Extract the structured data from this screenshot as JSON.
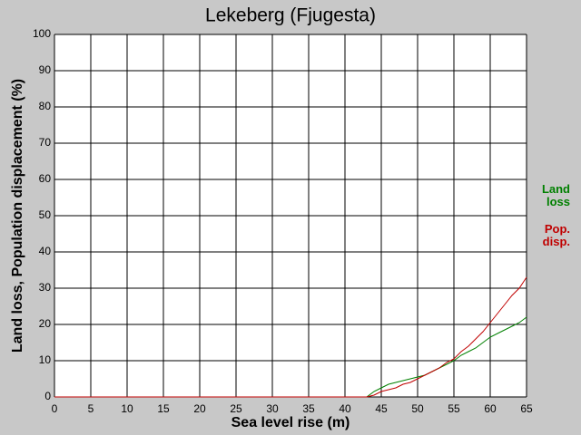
{
  "chart_data": {
    "type": "line",
    "title": "Lekeberg (Fjugesta)",
    "x_label": "Sea level rise (m)",
    "y_label": "Land loss, Population displacement (%)",
    "x": [
      0,
      1,
      2,
      3,
      4,
      5,
      6,
      7,
      8,
      9,
      10,
      11,
      12,
      13,
      14,
      15,
      16,
      17,
      18,
      19,
      20,
      21,
      22,
      23,
      24,
      25,
      26,
      27,
      28,
      29,
      30,
      31,
      32,
      33,
      34,
      35,
      36,
      37,
      38,
      39,
      40,
      41,
      42,
      43,
      44,
      45,
      46,
      47,
      48,
      49,
      50,
      51,
      52,
      53,
      54,
      55,
      56,
      57,
      58,
      59,
      60,
      61,
      62,
      63,
      64,
      65
    ],
    "series": [
      {
        "name": "Land loss",
        "color": "#008000",
        "values": [
          0,
          0,
          0,
          0,
          0,
          0,
          0,
          0,
          0,
          0,
          0,
          0,
          0,
          0,
          0,
          0,
          0,
          0,
          0,
          0,
          0,
          0,
          0,
          0,
          0,
          0,
          0,
          0,
          0,
          0,
          0,
          0,
          0,
          0,
          0,
          0,
          0,
          0,
          0,
          0,
          0,
          0,
          0,
          0,
          1.5,
          2.5,
          3.5,
          4,
          4.5,
          5,
          5.5,
          6,
          7,
          8,
          9,
          10,
          11.5,
          12.5,
          13.5,
          15,
          16.5,
          17.5,
          18.5,
          19.5,
          20.5,
          22
        ]
      },
      {
        "name": "Pop. disp.",
        "color": "#c00000",
        "values": [
          0,
          0,
          0,
          0,
          0,
          0,
          0,
          0,
          0,
          0,
          0,
          0,
          0,
          0,
          0,
          0,
          0,
          0,
          0,
          0,
          0,
          0,
          0,
          0,
          0,
          0,
          0,
          0,
          0,
          0,
          0,
          0,
          0,
          0,
          0,
          0,
          0,
          0,
          0,
          0,
          0,
          0,
          0,
          0,
          0.5,
          1.5,
          2,
          2.5,
          3.5,
          4,
          5,
          6,
          7,
          8,
          9.5,
          10.5,
          12.5,
          14,
          16,
          18,
          20.5,
          23,
          25.5,
          28,
          30,
          33
        ]
      }
    ],
    "xlim": [
      0,
      65
    ],
    "ylim": [
      0,
      100
    ],
    "xticks": [
      0,
      5,
      10,
      15,
      20,
      25,
      30,
      35,
      40,
      45,
      50,
      55,
      60,
      65
    ],
    "yticks": [
      0,
      10,
      20,
      30,
      40,
      50,
      60,
      70,
      80,
      90,
      100
    ],
    "grid": true
  }
}
